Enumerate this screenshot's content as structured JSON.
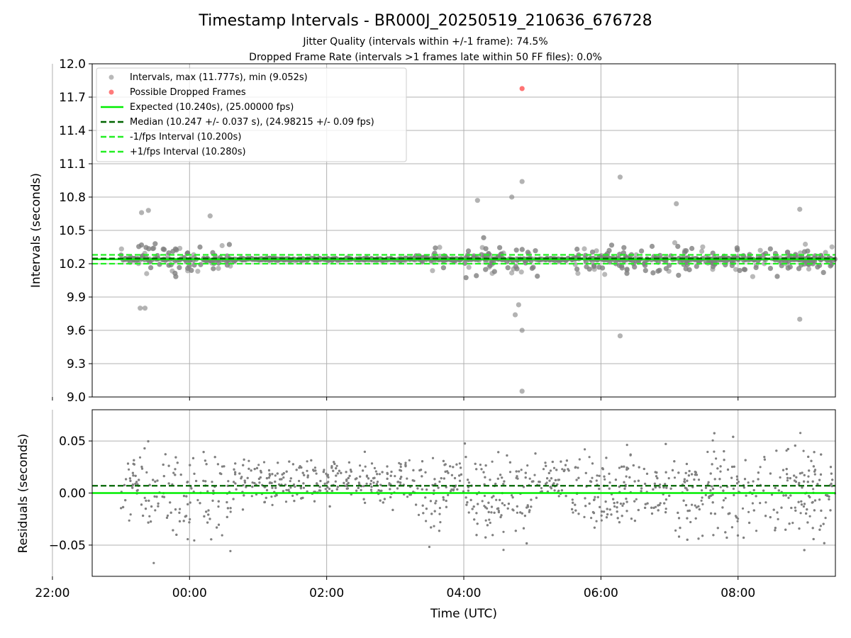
{
  "figure": {
    "title": "Timestamp Intervals - BR000J_20250519_210636_676728",
    "subtitle_line1": "Jitter Quality (intervals within +/-1 frame): 74.5%",
    "subtitle_line2": "Dropped Frame Rate (intervals >1 frames late within 50 FF files): 0.0%"
  },
  "colors": {
    "points": "#808080",
    "dropped": "#ff5a5a",
    "expected": "#00ee00",
    "median": "#006400",
    "fps_band": "#22ee22",
    "grid": "#b0b0b0"
  },
  "chart_data": [
    {
      "type": "scatter",
      "ylabel": "Intervals (seconds)",
      "ylim": [
        9.0,
        12.0
      ],
      "yticks": [
        "12.0",
        "11.7",
        "11.4",
        "11.1",
        "10.8",
        "10.5",
        "10.2",
        "9.9",
        "9.6",
        "9.3",
        "9.0"
      ],
      "xlim": [
        -1.42,
        9.42
      ],
      "grid": true,
      "legend_position": "upper-left",
      "legend": [
        "Intervals, max (11.777s), min (9.052s)",
        "Possible Dropped Frames",
        "Expected (10.240s), (25.00000 fps)",
        "Median (10.247 +/- 0.037 s), (24.98215 +/- 0.09 fps)",
        "-1/fps Interval (10.200s)",
        "+1/fps Interval (10.280s)"
      ],
      "reference_lines": {
        "expected": 10.24,
        "median": 10.247,
        "minus_fps": 10.2,
        "plus_fps": 10.28
      },
      "dropped_frames": [
        {
          "x": 4.85,
          "y": 11.777
        }
      ],
      "notable_points": [
        {
          "x": 4.85,
          "y": 9.052
        },
        {
          "x": 4.85,
          "y": 10.94
        },
        {
          "x": 4.85,
          "y": 9.6
        },
        {
          "x": 6.28,
          "y": 10.98
        },
        {
          "x": 6.28,
          "y": 9.55
        },
        {
          "x": 7.1,
          "y": 10.74
        },
        {
          "x": 8.9,
          "y": 9.7
        },
        {
          "x": 8.9,
          "y": 10.69
        },
        {
          "x": 4.7,
          "y": 10.8
        },
        {
          "x": 4.2,
          "y": 10.77
        },
        {
          "x": -0.6,
          "y": 10.68
        },
        {
          "x": -0.7,
          "y": 10.66
        },
        {
          "x": -0.65,
          "y": 9.8
        },
        {
          "x": -0.72,
          "y": 9.8
        },
        {
          "x": 0.3,
          "y": 10.63
        },
        {
          "x": 4.75,
          "y": 9.74
        },
        {
          "x": 4.8,
          "y": 9.83
        }
      ],
      "activity_windows": [
        {
          "start": -1.1,
          "end": -0.85,
          "scatter": 0.25
        },
        {
          "start": -0.75,
          "end": 0.6,
          "scatter": 0.45
        },
        {
          "start": 3.3,
          "end": 3.75,
          "scatter": 0.35
        },
        {
          "start": 4.0,
          "end": 5.1,
          "scatter": 0.45
        },
        {
          "start": 5.55,
          "end": 9.4,
          "scatter": 0.4
        }
      ]
    },
    {
      "type": "scatter",
      "ylabel": "Residuals (seconds)",
      "xlabel": "Time (UTC)",
      "ylim": [
        -0.08,
        0.08
      ],
      "yticks": [
        "0.05",
        "0.00",
        "−0.05"
      ],
      "ytick_values": [
        0.05,
        0.0,
        -0.05
      ],
      "xticks": [
        "22:00",
        "00:00",
        "02:00",
        "04:00",
        "06:00",
        "08:00"
      ],
      "xtick_values": [
        -2,
        0,
        2,
        4,
        6,
        8
      ],
      "xlim": [
        -1.42,
        9.42
      ],
      "grid": true,
      "reference_lines": {
        "expected": 0.0,
        "median": 0.007
      },
      "data_range": {
        "start": -1.0,
        "end": 9.42
      }
    }
  ]
}
